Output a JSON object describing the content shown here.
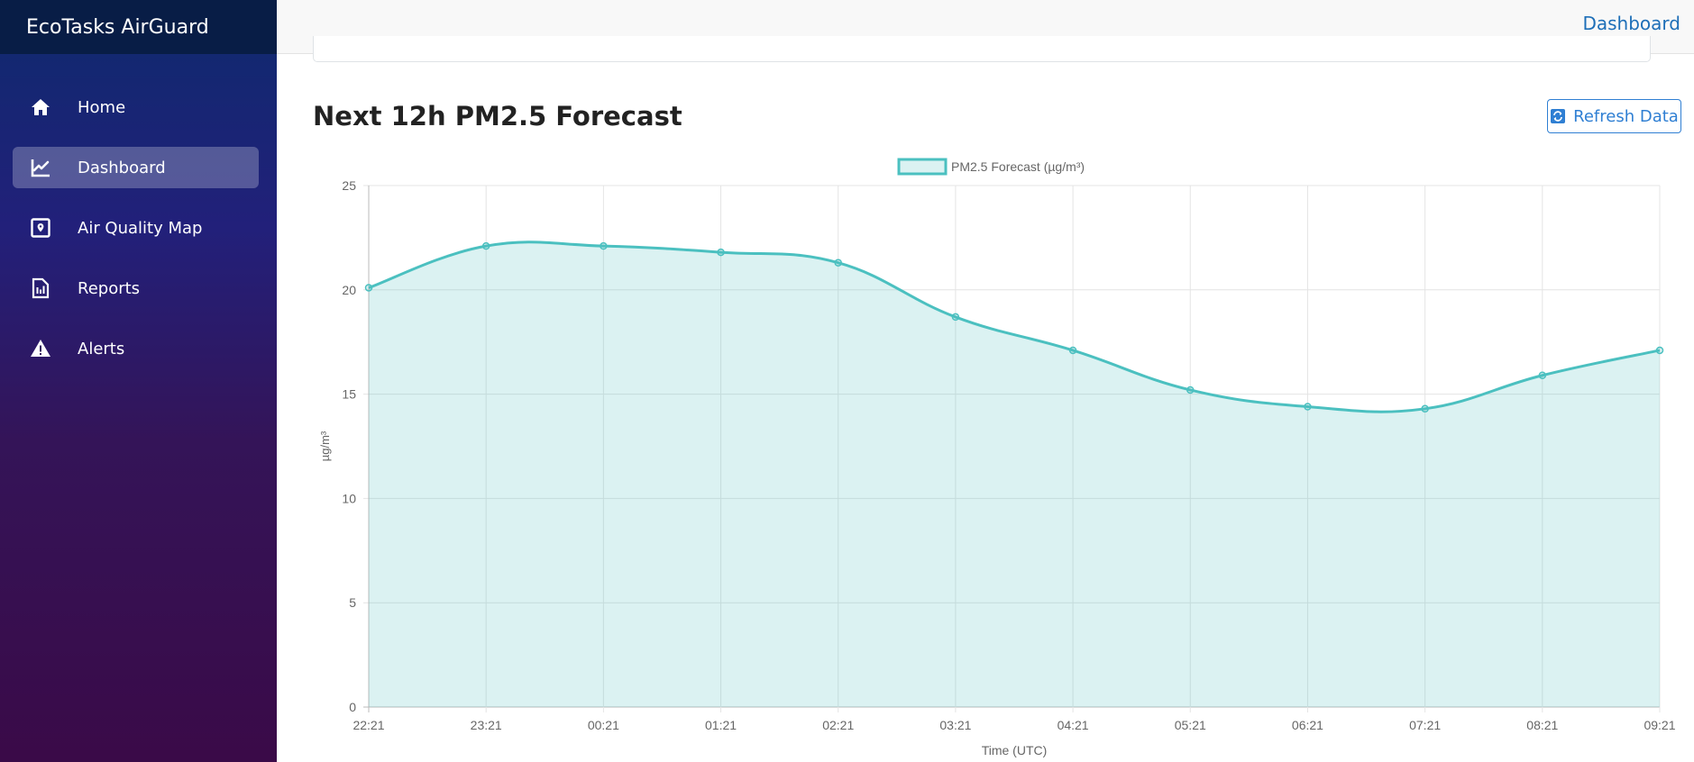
{
  "app": {
    "title": "EcoTasks AirGuard"
  },
  "sidebar": {
    "items": [
      {
        "label": "Home",
        "icon": "home-icon",
        "active": false
      },
      {
        "label": "Dashboard",
        "icon": "chart-line-icon",
        "active": true
      },
      {
        "label": "Air Quality Map",
        "icon": "map-pin-icon",
        "active": false
      },
      {
        "label": "Reports",
        "icon": "report-icon",
        "active": false
      },
      {
        "label": "Alerts",
        "icon": "warning-icon",
        "active": false
      }
    ]
  },
  "header": {
    "breadcrumb": "Dashboard"
  },
  "main": {
    "section_title": "Next 12h PM2.5 Forecast",
    "refresh_label": "Refresh Data"
  },
  "colors": {
    "accent": "#4bc0c0",
    "fill": "rgba(75,192,192,0.2)",
    "link": "#1e6fb8"
  },
  "chart_data": {
    "type": "area",
    "legend": "PM2.5 Forecast (µg/m³)",
    "legend_position": "top",
    "xlabel": "Time (UTC)",
    "ylabel": "µg/m³",
    "ylim": [
      0,
      25
    ],
    "yticks": [
      0,
      5,
      10,
      15,
      20,
      25
    ],
    "categories": [
      "22:21",
      "23:21",
      "00:21",
      "01:21",
      "02:21",
      "03:21",
      "04:21",
      "05:21",
      "06:21",
      "07:21",
      "08:21",
      "09:21"
    ],
    "values": [
      20.1,
      22.1,
      22.1,
      21.8,
      21.3,
      18.7,
      17.1,
      15.2,
      14.4,
      14.3,
      15.9,
      17.1
    ],
    "grid": true
  }
}
